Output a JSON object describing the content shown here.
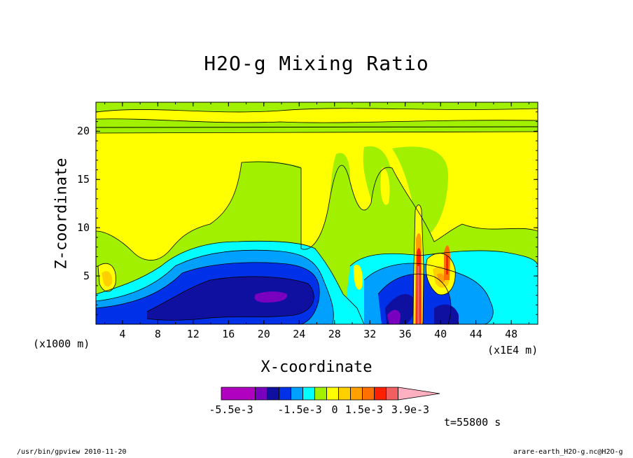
{
  "chart_data": {
    "type": "heatmap",
    "title": "H2O-g Mixing Ratio",
    "xlabel": "X-coordinate",
    "ylabel": "Z-coordinate",
    "x_unit_left": "(x1000 m)",
    "x_unit_right": "(x1E4 m)",
    "x_ticks": [
      "4",
      "8",
      "12",
      "16",
      "20",
      "24",
      "28",
      "32",
      "36",
      "40",
      "44",
      "48"
    ],
    "y_ticks": [
      "5",
      "10",
      "15",
      "20"
    ],
    "xlim": [
      1,
      51
    ],
    "ylim": [
      0,
      23
    ],
    "colorbar": {
      "colors": [
        "#b000c0",
        "#7a00c0",
        "#1010a0",
        "#0030e8",
        "#00a0ff",
        "#00ffff",
        "#a0f000",
        "#ffff00",
        "#ffd000",
        "#ffa000",
        "#ff7000",
        "#ff2000",
        "#f06060",
        "#ffb0c0"
      ],
      "labels": [
        "-5.5e-3",
        "-1.5e-3",
        "0",
        "1.5e-3",
        "3.9e-3"
      ]
    },
    "time_label": "t=55800 s"
  },
  "footer": {
    "left": "/usr/bin/gpview  2010-11-20",
    "right": "arare-earth_H2O-g.nc@H2O-g"
  }
}
